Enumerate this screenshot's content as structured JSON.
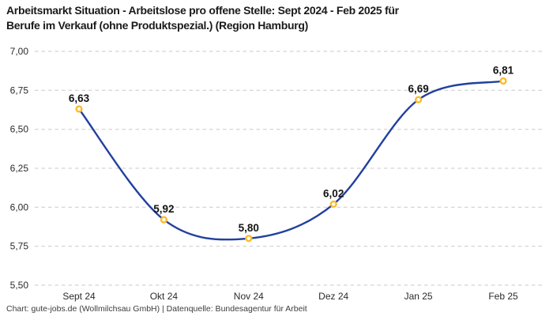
{
  "header": {
    "title_lines": [
      "Arbeitsmarkt Situation - Arbeitslose pro offene Stelle: Sept 2024 - Feb 2025 für",
      "Berufe im Verkauf (ohne Produktspezial.) (Region Hamburg)"
    ]
  },
  "footer": {
    "credit": "Chart: gute-jobs.de (Wollmilchsau GmbH) | Datenquelle: Bundesagentur für Arbeit"
  },
  "chart_data": {
    "type": "line",
    "title": "Arbeitsmarkt Situation - Arbeitslose pro offene Stelle: Sept 2024 - Feb 2025 für Berufe im Verkauf (ohne Produktspezial.) (Region Hamburg)",
    "categories": [
      "Sept 24",
      "Okt 24",
      "Nov 24",
      "Dez 24",
      "Jan 25",
      "Feb 25"
    ],
    "values": [
      6.63,
      5.92,
      5.8,
      6.02,
      6.69,
      6.81
    ],
    "value_labels": [
      "6,63",
      "5,92",
      "5,80",
      "6,02",
      "6,69",
      "6,81"
    ],
    "xlabel": "",
    "ylabel": "",
    "ylim": [
      5.5,
      7.0
    ],
    "y_ticks": [
      7.0,
      6.75,
      6.5,
      6.25,
      6.0,
      5.75,
      5.5
    ],
    "y_tick_labels": [
      "7,00",
      "6,75",
      "6,50",
      "6,25",
      "6,00",
      "5,75",
      "5,50"
    ],
    "grid": "horizontal-dashed",
    "legend": "none",
    "curve": "smooth",
    "colors": {
      "line": "#21409f",
      "marker_ring": "#fcbb2a",
      "marker_fill": "#ffffff",
      "grid": "#c9c9c9",
      "label_text": "#141414",
      "tick_text": "#2b2b2b"
    }
  }
}
